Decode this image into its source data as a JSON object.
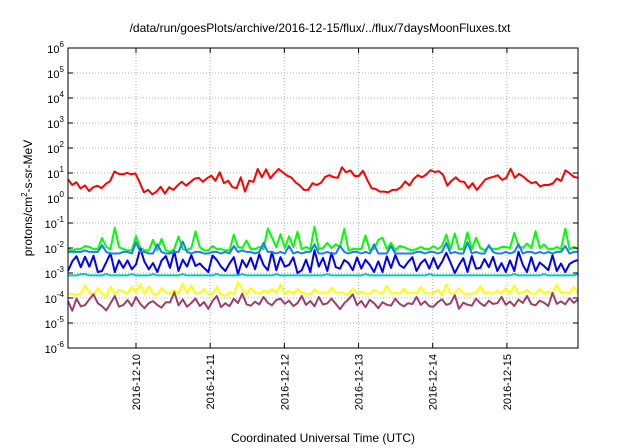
{
  "chart_data": {
    "type": "line",
    "title": "/data/run/goesPlots/archive/2016-12-15/flux/../flux/7daysMoonFluxes.txt",
    "xlabel": "Coordinated Universal Time (UTC)",
    "ylabel": "protons/cm²-s-sr-MeV",
    "ylabel_parts": {
      "base": "protons/cm",
      "sup": "2",
      "rest": "-s-sr-MeV"
    },
    "x_axis": {
      "type": "date",
      "start": "2016-12-09T02:00",
      "end": "2016-12-15T23:00"
    },
    "xticks": [
      "2016-12-10",
      "2016-12-11",
      "2016-12-12",
      "2016-12-13",
      "2016-12-14",
      "2016-12-15"
    ],
    "yscale": "log",
    "ylim": [
      1e-06,
      1000000.0
    ],
    "ytick_labels": [
      {
        "base": "10",
        "exp": "-6"
      },
      {
        "base": "10",
        "exp": "-5"
      },
      {
        "base": "10",
        "exp": "-4"
      },
      {
        "base": "10",
        "exp": "-3"
      },
      {
        "base": "10",
        "exp": "-2"
      },
      {
        "base": "10",
        "exp": "-1"
      },
      {
        "base": "10",
        "exp": "0"
      },
      {
        "base": "10",
        "exp": "1"
      },
      {
        "base": "10",
        "exp": "2"
      },
      {
        "base": "10",
        "exp": "3"
      },
      {
        "base": "10",
        "exp": "4"
      },
      {
        "base": "10",
        "exp": "5"
      },
      {
        "base": "10",
        "exp": "6"
      }
    ],
    "grid": true,
    "legend": "none",
    "series": [
      {
        "color": "#ff0000",
        "values": [
          5.6,
          3.3,
          4.3,
          2.4,
          3.2,
          1.9,
          2.7,
          3.1,
          2.5,
          3.7,
          4.7,
          11.5,
          9.2,
          8.8,
          10.1,
          8.9,
          9.6,
          4.2,
          1.7,
          2.1,
          1.4,
          1.8,
          2.8,
          1.5,
          2.7,
          2.1,
          3.2,
          4.5,
          3.1,
          4.3,
          5.9,
          6.4,
          4.5,
          6.2,
          7.8,
          4.9,
          10.7,
          3.9,
          4.9,
          2.7,
          2.5,
          6.7,
          1.8,
          4.9,
          4.4,
          14.6,
          6.7,
          14.1,
          6.1,
          9.7,
          14.5,
          10.5,
          7.8,
          6.6,
          4.2,
          3.2,
          2.1,
          2.1,
          3.9,
          3.3,
          4.0,
          7.0,
          8.2,
          6.8,
          6.4,
          16.9,
          10.6,
          12.7,
          7.6,
          7.6,
          12.2,
          5.3,
          2.5,
          2.3,
          1.8,
          1.8,
          1.7,
          2.1,
          2.1,
          2.7,
          4.6,
          3.2,
          5.7,
          8.2,
          6.7,
          8.8,
          12.9,
          11.0,
          11.8,
          8.4,
          3.1,
          4.9,
          6.7,
          4.6,
          4.4,
          2.5,
          3.9,
          2.1,
          3.4,
          5.5,
          6.4,
          7.1,
          8.1,
          5.3,
          6.4,
          14.7,
          6.4,
          9.2,
          7.2,
          5.1,
          3.9,
          4.4,
          2.9,
          3.3,
          3.3,
          3.8,
          6.0,
          4.8,
          12.7,
          9.8,
          7.0,
          6.4
        ]
      },
      {
        "color": "#00ff00",
        "values": [
          0.009,
          0.008,
          0.009,
          0.009,
          0.012,
          0.011,
          0.009,
          0.009,
          0.025,
          0.011,
          0.009,
          0.065,
          0.011,
          0.009,
          0.008,
          0.008,
          0.03,
          0.01,
          0.008,
          0.008,
          0.021,
          0.008,
          0.023,
          0.008,
          0.007,
          0.009,
          0.029,
          0.009,
          0.008,
          0.01,
          0.046,
          0.011,
          0.008,
          0.008,
          0.012,
          0.009,
          0.009,
          0.008,
          0.008,
          0.034,
          0.011,
          0.01,
          0.02,
          0.009,
          0.009,
          0.011,
          0.009,
          0.061,
          0.026,
          0.011,
          0.036,
          0.01,
          0.029,
          0.011,
          0.045,
          0.009,
          0.011,
          0.009,
          0.072,
          0.009,
          0.01,
          0.016,
          0.01,
          0.014,
          0.011,
          0.058,
          0.008,
          0.009,
          0.009,
          0.009,
          0.032,
          0.008,
          0.009,
          0.021,
          0.026,
          0.009,
          0.016,
          0.008,
          0.012,
          0.011,
          0.009,
          0.008,
          0.009,
          0.011,
          0.009,
          0.009,
          0.012,
          0.009,
          0.012,
          0.034,
          0.009,
          0.038,
          0.009,
          0.009,
          0.042,
          0.009,
          0.026,
          0.01,
          0.008,
          0.011,
          0.009,
          0.009,
          0.011,
          0.011,
          0.01,
          0.04,
          0.012,
          0.01,
          0.015,
          0.01,
          0.047,
          0.01,
          0.014,
          0.009,
          0.009,
          0.011,
          0.009,
          0.06,
          0.009,
          0.011,
          0.009
        ]
      },
      {
        "color": "#0000ff",
        "values": [
          0.0012,
          0.0029,
          0.0047,
          0.0017,
          0.0045,
          0.0018,
          0.0049,
          0.0011,
          0.0012,
          0.0027,
          0.0062,
          0.0011,
          0.0032,
          0.0016,
          0.0032,
          0.0014,
          0.0022,
          0.0095,
          0.0028,
          0.0014,
          0.0025,
          0.0011,
          0.0031,
          0.0048,
          0.0016,
          0.0074,
          0.0012,
          0.0034,
          0.0018,
          0.0052,
          0.0019,
          0.0024,
          0.0016,
          0.0011,
          0.005,
          0.0033,
          0.0018,
          0.0012,
          0.0024,
          0.0043,
          0.0009,
          0.0033,
          0.0017,
          0.0041,
          0.0014,
          0.0057,
          0.0021,
          0.0013,
          0.0071,
          0.0013,
          0.0043,
          0.0018,
          0.0021,
          0.0042,
          0.001,
          0.0013,
          0.0034,
          0.0011,
          0.0082,
          0.0018,
          0.004,
          0.0012,
          0.0065,
          0.0017,
          0.0015,
          0.0033,
          0.0025,
          0.0013,
          0.0042,
          0.0015,
          0.0034,
          0.0021,
          0.0011,
          0.0029,
          0.0011,
          0.0046,
          0.0016,
          0.0052,
          0.0021,
          0.0016,
          0.0027,
          0.0043,
          0.0012,
          0.0025,
          0.0035,
          0.0015,
          0.0041,
          0.0015,
          0.0028,
          0.0064,
          0.0026,
          0.001,
          0.0021,
          0.0039,
          0.0011,
          0.0048,
          0.0015,
          0.0016,
          0.0036,
          0.0017,
          0.0044,
          0.0012,
          0.0025,
          0.0011,
          0.0032,
          0.0012,
          0.0071,
          0.0021,
          0.0011,
          0.0043,
          0.0012,
          0.0026,
          0.0019,
          0.0013,
          0.0052,
          0.0012,
          0.0024,
          0.0011,
          0.0023,
          0.0029,
          0.0033
        ]
      },
      {
        "color": "#1e78ff",
        "values": [
          0.007,
          0.007,
          0.007,
          0.007,
          0.008,
          0.007,
          0.007,
          0.007,
          0.013,
          0.007,
          0.006,
          0.006,
          0.006,
          0.007,
          0.007,
          0.006,
          0.017,
          0.007,
          0.007,
          0.006,
          0.006,
          0.014,
          0.007,
          0.006,
          0.006,
          0.007,
          0.007,
          0.018,
          0.007,
          0.006,
          0.007,
          0.007,
          0.006,
          0.006,
          0.007,
          0.007,
          0.006,
          0.007,
          0.006,
          0.012,
          0.007,
          0.008,
          0.007,
          0.007,
          0.006,
          0.007,
          0.016,
          0.007,
          0.007,
          0.006,
          0.007,
          0.006,
          0.012,
          0.006,
          0.007,
          0.006,
          0.007,
          0.007,
          0.014,
          0.006,
          0.006,
          0.007,
          0.006,
          0.006,
          0.012,
          0.007,
          0.006,
          0.007,
          0.007,
          0.006,
          0.007,
          0.006,
          0.014,
          0.006,
          0.006,
          0.006,
          0.012,
          0.006,
          0.006,
          0.006,
          0.006,
          0.006,
          0.007,
          0.007,
          0.006,
          0.007,
          0.007,
          0.006,
          0.007,
          0.016,
          0.006,
          0.007,
          0.006,
          0.006,
          0.017,
          0.006,
          0.007,
          0.006,
          0.006,
          0.013,
          0.007,
          0.006,
          0.006,
          0.007,
          0.006,
          0.007,
          0.014,
          0.006,
          0.007,
          0.007,
          0.006,
          0.007,
          0.006,
          0.007,
          0.006,
          0.007,
          0.007,
          0.012,
          0.006,
          0.007,
          0.007
        ]
      },
      {
        "color": "#00ccbb",
        "values": [
          0.0008,
          0.0008,
          0.0008,
          0.0009,
          0.0009,
          0.0008,
          0.0008,
          0.0008,
          0.0008,
          0.0009,
          0.0008,
          0.0008,
          0.0008,
          0.0008,
          0.0008,
          0.0009,
          0.0008,
          0.0008,
          0.0008,
          0.0008,
          0.0009,
          0.0008,
          0.0008,
          0.0008,
          0.0008,
          0.0008,
          0.0008,
          0.0009,
          0.0008,
          0.0008,
          0.0008,
          0.0008,
          0.0008,
          0.0008,
          0.0008,
          0.0009,
          0.0008,
          0.0008,
          0.0008,
          0.0008,
          0.0008,
          0.0009,
          0.0008,
          0.0008,
          0.0008,
          0.0008,
          0.0008,
          0.0008,
          0.0008,
          0.0009,
          0.0008,
          0.0008,
          0.0008,
          0.0008,
          0.0008,
          0.0008,
          0.0008,
          0.0008,
          0.0008,
          0.0008,
          0.0008,
          0.0009,
          0.0008,
          0.0008,
          0.0008,
          0.0008,
          0.0008,
          0.0008,
          0.0008,
          0.0008,
          0.0009,
          0.0008,
          0.0008,
          0.0008,
          0.0008,
          0.0008,
          0.0008,
          0.0008,
          0.0008,
          0.0008,
          0.0008,
          0.0008,
          0.0008,
          0.0008,
          0.0008,
          0.0009,
          0.0008,
          0.0008,
          0.0008,
          0.0008,
          0.0008,
          0.0008,
          0.0008,
          0.0008,
          0.0008,
          0.0008,
          0.0008,
          0.0008,
          0.0008,
          0.0008,
          0.0008,
          0.0008,
          0.0008,
          0.0008,
          0.0008,
          0.0009,
          0.0008,
          0.0008,
          0.0008,
          0.0008,
          0.0008,
          0.0008,
          0.0009,
          0.0008,
          0.0008,
          0.0008,
          0.0008,
          0.0008,
          0.0008,
          0.0008,
          0.0009
        ]
      },
      {
        "color": "#ffff00",
        "values": [
          0.00015,
          0.00015,
          0.00013,
          0.00015,
          0.00032,
          0.00016,
          0.00013,
          0.00025,
          0.00015,
          0.00012,
          0.00028,
          0.00015,
          0.00021,
          0.00018,
          0.00015,
          0.00028,
          0.00017,
          0.00035,
          0.00015,
          0.00029,
          0.00015,
          0.00014,
          0.00025,
          0.00017,
          0.00015,
          0.00021,
          0.00015,
          0.00038,
          0.00016,
          0.00031,
          0.00015,
          0.00016,
          0.00023,
          0.00014,
          0.00015,
          0.00027,
          0.00014,
          0.00012,
          0.00017,
          0.00014,
          0.00044,
          0.00023,
          0.00014,
          0.00025,
          0.00017,
          0.00015,
          0.00019,
          0.00017,
          0.00023,
          0.00016,
          0.00035,
          0.00015,
          0.00019,
          0.00015,
          0.00023,
          0.00016,
          0.00015,
          0.00014,
          0.00022,
          0.00016,
          0.00017,
          0.00015,
          0.00026,
          0.00016,
          0.00017,
          0.00015,
          0.00014,
          0.00025,
          0.00015,
          0.00018,
          0.00015,
          0.00015,
          0.00021,
          0.00017,
          0.00015,
          0.00031,
          0.00015,
          0.00016,
          0.00015,
          0.00024,
          0.00015,
          0.00017,
          0.00015,
          0.00028,
          0.00016,
          0.00015,
          0.00016,
          0.00022,
          0.00013,
          0.00035,
          0.00015,
          0.00016,
          0.00025,
          0.00015,
          0.00014,
          0.00015,
          0.00016,
          0.00029,
          0.00015,
          0.00017,
          0.00015,
          0.00019,
          0.00015,
          0.00025,
          0.00015,
          0.00032,
          0.00015,
          0.00017,
          0.00021,
          0.00015,
          0.00015,
          0.00023,
          0.00015,
          0.00018,
          0.00015,
          0.00034,
          0.00016,
          0.00017,
          0.00015,
          0.00028,
          0.00016
        ]
      },
      {
        "color": "#9c3f6b",
        "values": [
          7.5e-05,
          3.1e-05,
          9.5e-05,
          4.6e-05,
          5.2e-05,
          8.8e-05,
          0.00014,
          6.2e-05,
          4.7e-05,
          3.2e-05,
          6.1e-05,
          0.00012,
          4.5e-05,
          5.2e-05,
          8.3e-05,
          4.8e-05,
          0.00011,
          5.8e-05,
          3.9e-05,
          6.2e-05,
          7.5e-05,
          5.3e-05,
          4.1e-05,
          6.8e-05,
          6.6e-05,
          0.00017,
          5.1e-05,
          8.8e-05,
          4.5e-05,
          6.3e-05,
          9.5e-05,
          4.8e-05,
          6.9e-05,
          3.7e-05,
          7.5e-05,
          0.00012,
          4.3e-05,
          6.2e-05,
          4.7e-05,
          9.3e-05,
          6.3e-05,
          0.00015,
          5.6e-05,
          4.9e-05,
          7.1e-05,
          5.5e-05,
          0.00011,
          6.4e-05,
          5.1e-05,
          8.3e-05,
          9.5e-05,
          5.8e-05,
          7.9e-05,
          4.8e-05,
          6.2e-05,
          0.00012,
          5.3e-05,
          7.6e-05,
          4.7e-05,
          0.00011,
          5.5e-05,
          6.1e-05,
          9.5e-05,
          5.8e-05,
          3.6e-05,
          6.2e-05,
          8.9e-05,
          0.00014,
          5.2e-05,
          7.6e-05,
          4.3e-05,
          8.4e-05,
          6.2e-05,
          3.9e-05,
          6.8e-05,
          5.4e-05,
          4.9e-05,
          9.5e-05,
          5.9e-05,
          4.6e-05,
          6.2e-05,
          5.7e-05,
          0.00011,
          5.3e-05,
          7.4e-05,
          4.7e-05,
          4.5e-05,
          6.8e-05,
          8.9e-05,
          5.3e-05,
          6.1e-05,
          0.00013,
          3.7e-05,
          6.5e-05,
          5.4e-05,
          4.9e-05,
          9.5e-05,
          6.2e-05,
          4.8e-05,
          7.8e-05,
          5.8e-05,
          6.2e-05,
          0.00011,
          5.4e-05,
          7.2e-05,
          4.8e-05,
          8.7e-05,
          6.3e-05,
          0.00012,
          5.7e-05,
          5.1e-05,
          7.9e-05,
          6.5e-05,
          4.8e-05,
          0.00016,
          5.8e-05,
          7.3e-05,
          5.6e-05,
          9.8e-05,
          6.4e-05,
          8.7e-05
        ]
      }
    ]
  }
}
